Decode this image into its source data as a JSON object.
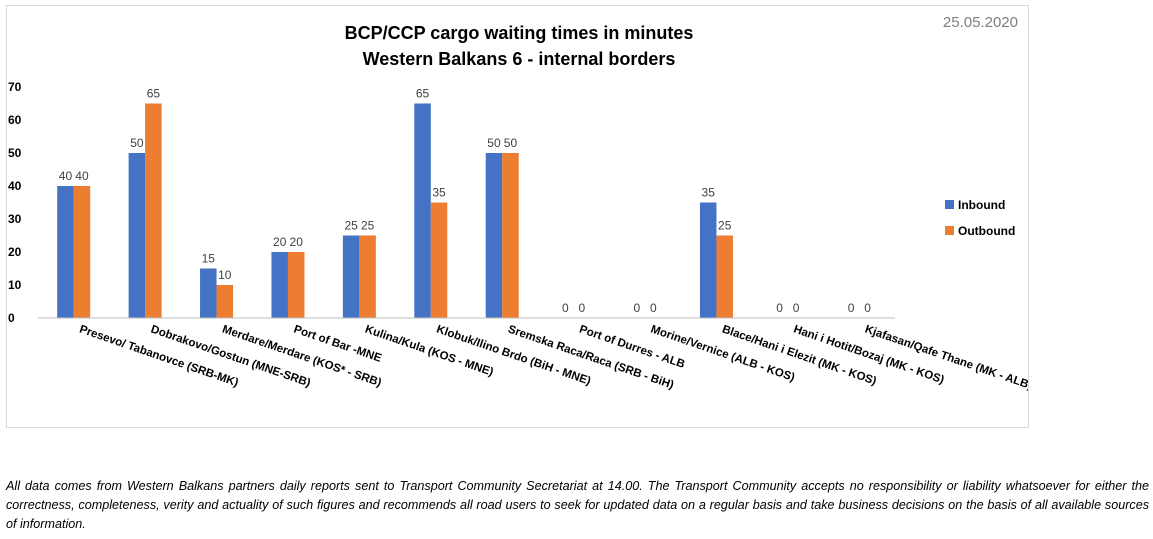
{
  "date": "25.05.2020",
  "footnote": "All data comes from Western Balkans partners daily reports sent to Transport Community Secretariat at 14.00. The Transport Community accepts no responsibility or liability whatsoever for either the correctness, completeness, verity and actuality of such figures and recommends all road users to seek for updated data on a regular basis and take business decisions on the basis of all available sources of information.",
  "chart_data": {
    "type": "bar",
    "title": "BCP/CCP cargo waiting times in minutes",
    "subtitle": "Western Balkans 6 - internal borders",
    "xlabel": "",
    "ylabel": "",
    "ylim": [
      0,
      70
    ],
    "yticks": [
      0,
      10,
      20,
      30,
      40,
      50,
      60,
      70
    ],
    "grid": false,
    "legend_position": "right",
    "categories": [
      "Presevo/ Tabanovce (SRB-MK)",
      "Dobrakovo/Gostun (MNE-SRB)",
      "Merdare/Merdare (KOS* - SRB)",
      "Port of Bar -MNE",
      "Kulina/Kula (KOS - MNE)",
      "Klobuk/Ilino Brdo (BiH - MNE)",
      "Sremska Raca/Raca (SRB - BiH)",
      "Port of Durres - ALB",
      "Morine/Vernice (ALB - KOS)",
      "Blace/Hani i Elezit (MK - KOS)",
      "Hani i Hotit/Bozaj (MK - KOS)",
      "Kjafasan/Qafe Thane (MK - ALB)"
    ],
    "series": [
      {
        "name": "Inbound",
        "color": "#4472c4",
        "values": [
          40,
          50,
          15,
          20,
          25,
          65,
          50,
          0,
          0,
          35,
          0,
          0
        ]
      },
      {
        "name": "Outbound",
        "color": "#ed7d31",
        "values": [
          40,
          65,
          10,
          20,
          25,
          35,
          50,
          0,
          0,
          25,
          0,
          0
        ]
      }
    ]
  }
}
